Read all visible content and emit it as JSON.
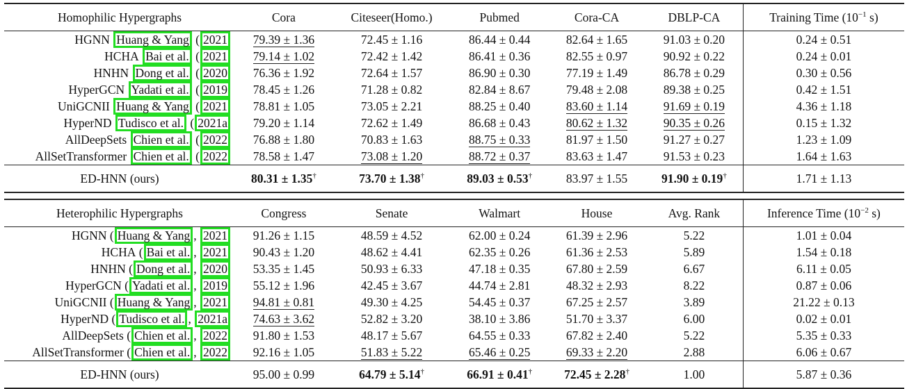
{
  "homophilic": {
    "header": [
      "Homophilic Hypergraphs",
      "Cora",
      "Citeseer(Homo.)",
      "Pubmed",
      "Cora-CA",
      "DBLP-CA"
    ],
    "time_header": "Training Time (10",
    "time_exp": "−1",
    "time_unit": " s)",
    "rows": [
      {
        "method": "HGNN",
        "author": "Huang & Yang",
        "year": "2021",
        "values": [
          "79.39 ± 1.36",
          "72.45 ± 1.16",
          "86.44 ± 0.44",
          "82.64 ± 1.65",
          "91.03 ± 0.20"
        ],
        "time": "0.24 ± 0.51"
      },
      {
        "method": "HCHA",
        "author": "Bai et al.",
        "year": "2021",
        "values": [
          "79.14 ± 1.02",
          "72.42 ± 1.42",
          "86.41 ± 0.36",
          "82.55 ± 0.97",
          "90.92 ± 0.22"
        ],
        "time": "0.24 ± 0.01"
      },
      {
        "method": "HNHN",
        "author": "Dong et al.",
        "year": "2020",
        "values": [
          "76.36 ± 1.92",
          "72.64 ± 1.57",
          "86.90 ± 0.30",
          "77.19 ± 1.49",
          "86.78 ± 0.29"
        ],
        "time": "0.30 ± 0.56"
      },
      {
        "method": "HyperGCN",
        "author": "Yadati et al.",
        "year": "2019",
        "values": [
          "78.45 ± 1.26",
          "71.28 ± 0.82",
          "82.84 ± 8.67",
          "79.48 ± 2.08",
          "89.38 ± 0.25"
        ],
        "time": "0.42 ± 1.51"
      },
      {
        "method": "UniGCNII",
        "author": "Huang & Yang",
        "year": "2021",
        "values": [
          "78.81 ± 1.05",
          "73.05 ± 2.21",
          "88.25 ± 0.40",
          "83.60 ± 1.14",
          "91.69 ± 0.19"
        ],
        "time": "4.36 ± 1.18"
      },
      {
        "method": "HyperND",
        "author": "Tudisco et al.",
        "year": "2021a",
        "values": [
          "79.20 ± 1.14",
          "72.62 ± 1.49",
          "86.68 ± 0.43",
          "80.62 ± 1.32",
          "90.35 ± 0.26"
        ],
        "time": "0.15 ± 1.32"
      },
      {
        "method": "AllDeepSets",
        "author": "Chien et al.",
        "year": "2022",
        "values": [
          "76.88 ± 1.80",
          "70.83 ± 1.63",
          "88.75 ± 0.33",
          "81.97 ± 1.50",
          "91.27 ± 0.27"
        ],
        "time": "1.23 ± 1.09"
      },
      {
        "method": "AllSetTransformer",
        "author": "Chien et al.",
        "year": "2022",
        "values": [
          "78.58 ± 1.47",
          "73.08 ± 1.20",
          "88.72 ± 0.37",
          "83.63 ± 1.47",
          "91.53 ± 0.23"
        ],
        "time": "1.64 ± 1.63"
      }
    ],
    "ours": {
      "method": "ED-HNN (ours)",
      "values": [
        "80.31 ± 1.35",
        "73.70 ± 1.38",
        "89.03 ± 0.53",
        "83.97 ± 1.55",
        "91.90 ± 0.19"
      ],
      "dagger": [
        "†",
        "†",
        "†",
        "",
        "†"
      ],
      "time": "1.71 ± 1.13"
    }
  },
  "heterophilic": {
    "header": [
      "Heterophilic Hypergraphs",
      "Congress",
      "Senate",
      "Walmart",
      "House",
      "Avg. Rank"
    ],
    "time_header": "Inference Time (10",
    "time_exp": "−2",
    "time_unit": " s)",
    "rows": [
      {
        "method": "HGNN",
        "author": "Huang & Yang",
        "year": "2021",
        "values": [
          "91.26 ± 1.15",
          "48.59 ± 4.52",
          "62.00 ± 0.24",
          "61.39 ± 2.96",
          "5.22"
        ],
        "time": "1.01 ± 0.04"
      },
      {
        "method": "HCHA",
        "author": "Bai et al.",
        "year": "2021",
        "values": [
          "90.43 ± 1.20",
          "48.62 ± 4.41",
          "62.35 ± 0.26",
          "61.36 ± 2.53",
          "5.89"
        ],
        "time": "1.54 ± 0.18"
      },
      {
        "method": "HNHN",
        "author": "Dong et al.",
        "year": "2020",
        "values": [
          "53.35 ± 1.45",
          "50.93 ± 6.33",
          "47.18 ± 0.35",
          "67.80 ± 2.59",
          "6.67"
        ],
        "time": "6.11 ± 0.05"
      },
      {
        "method": "HyperGCN",
        "author": "Yadati et al.",
        "year": "2019",
        "values": [
          "55.12 ± 1.96",
          "42.45 ± 3.67",
          "44.74 ± 2.81",
          "48.32 ± 2.93",
          "8.22"
        ],
        "time": "0.87 ± 0.06"
      },
      {
        "method": "UniGCNII",
        "author": "Huang & Yang",
        "year": "2021",
        "values": [
          "94.81 ± 0.81",
          "49.30 ± 4.25",
          "54.45 ± 0.37",
          "67.25 ± 2.57",
          "3.89"
        ],
        "time": "21.22 ± 0.13"
      },
      {
        "method": "HyperND",
        "author": "Tudisco et al.",
        "year": "2021a",
        "values": [
          "74.63 ± 3.62",
          "52.82 ± 3.20",
          "38.10 ± 3.86",
          "51.70 ± 3.37",
          "6.00"
        ],
        "time": "0.02 ± 0.01"
      },
      {
        "method": "AllDeepSets",
        "author": "Chien et al.",
        "year": "2022",
        "values": [
          "91.80 ± 1.53",
          "48.17 ± 5.67",
          "64.55 ± 0.33",
          "67.82 ± 2.40",
          "5.22"
        ],
        "time": "5.35 ± 0.33"
      },
      {
        "method": "AllSetTransformer",
        "author": "Chien et al.",
        "year": "2022",
        "values": [
          "92.16 ± 1.05",
          "51.83 ± 5.22",
          "65.46 ± 0.25",
          "69.33 ± 2.20",
          "2.88"
        ],
        "time": "6.06 ± 0.67"
      }
    ],
    "ours": {
      "method": "ED-HNN (ours)",
      "values": [
        "95.00 ± 0.99",
        "64.79 ± 5.14",
        "66.91 ± 0.41",
        "72.45 ± 2.28",
        "1.00"
      ],
      "dagger": [
        "",
        "†",
        "†",
        "†",
        ""
      ],
      "time": "5.87 ± 0.36"
    }
  },
  "highlight_color": "#22dd22",
  "underlined": {
    "homophilic": [
      [
        0,
        0
      ],
      [
        1,
        0
      ],
      [
        4,
        3
      ],
      [
        5,
        3
      ],
      [
        4,
        4
      ],
      [
        5,
        4
      ],
      [
        6,
        2
      ],
      [
        7,
        2
      ],
      [
        7,
        1
      ]
    ],
    "heterophilic": [
      [
        4,
        0
      ],
      [
        5,
        0
      ],
      [
        7,
        1
      ],
      [
        7,
        2
      ],
      [
        7,
        3
      ]
    ]
  },
  "bold_ours": {
    "homophilic": [
      0,
      1,
      2,
      4
    ],
    "heterophilic": [
      1,
      2,
      3
    ]
  }
}
